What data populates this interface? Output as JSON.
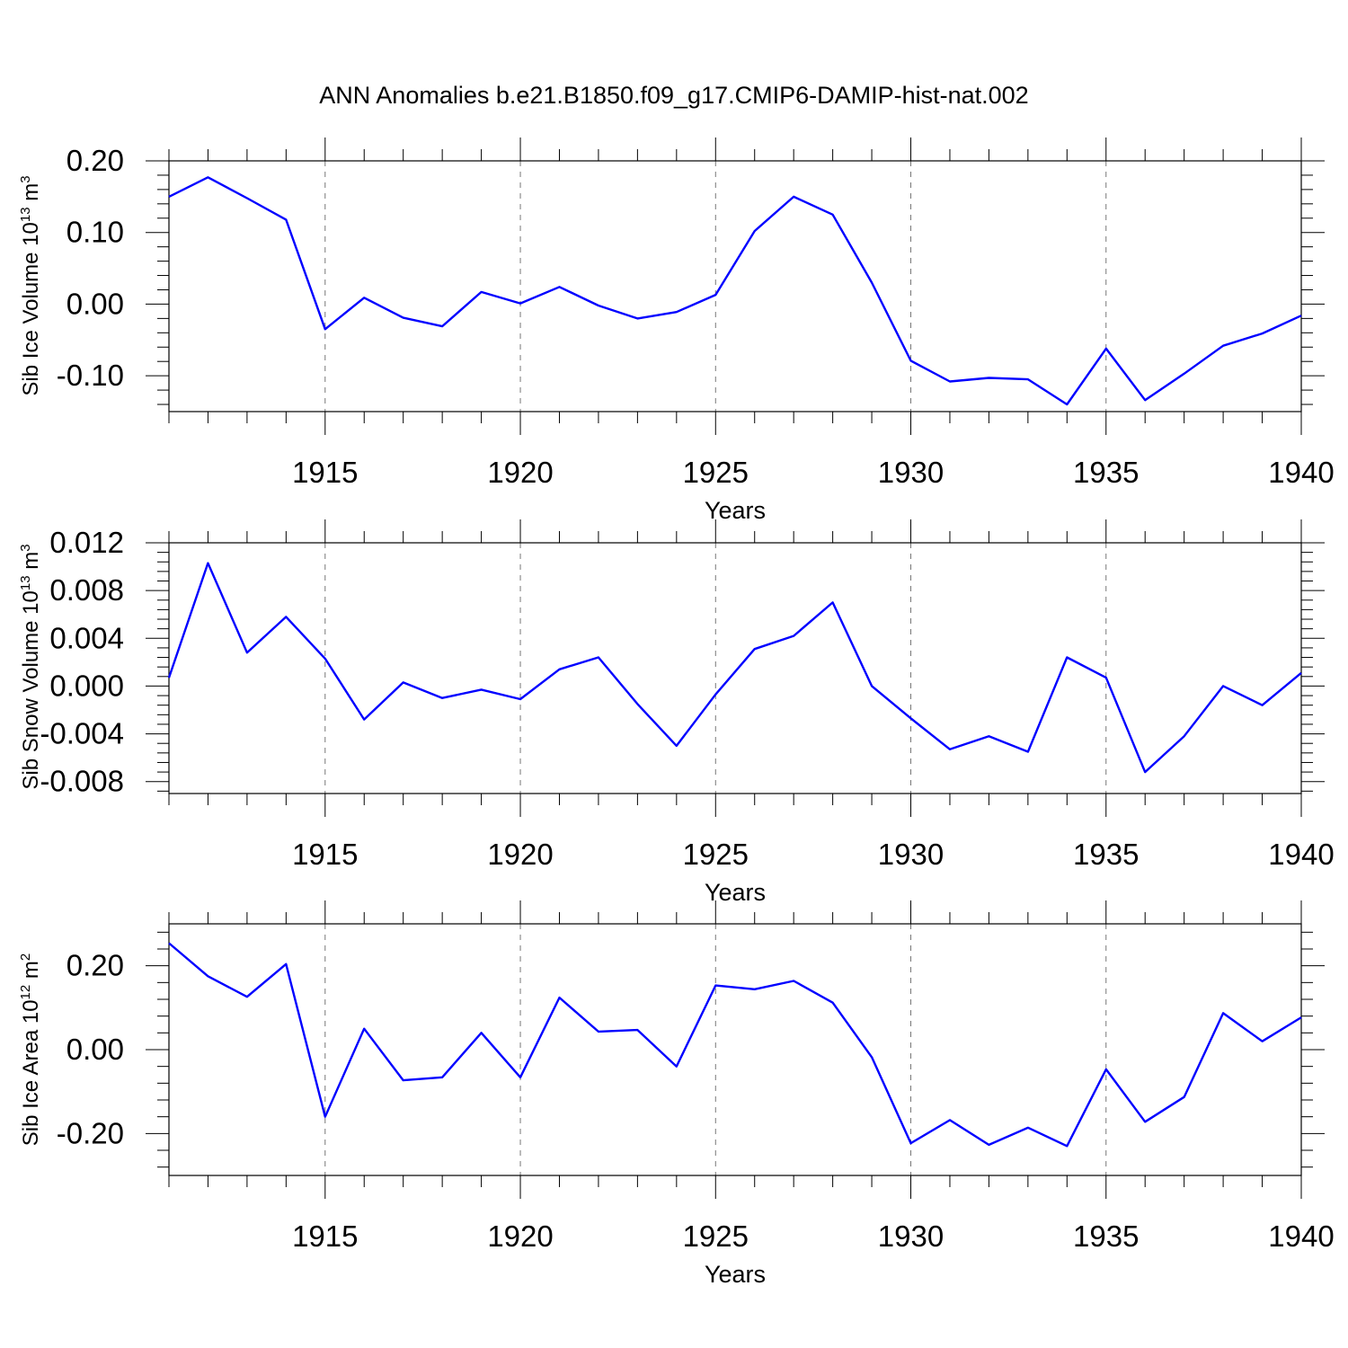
{
  "title": "ANN Anomalies b.e21.B1850.f09_g17.CMIP6-DAMIP-hist-nat.002",
  "chart_data": [
    {
      "type": "line",
      "title": "ANN Anomalies b.e21.B1850.f09_g17.CMIP6-DAMIP-hist-nat.002",
      "xlabel": "Years",
      "ylabel": {
        "text": "Sib Ice Volume 10",
        "sup": "13",
        "unit": " m",
        "unit_sup": "3"
      },
      "xlim": [
        1911,
        1940
      ],
      "ylim": [
        -0.15,
        0.2
      ],
      "x_ticks": [
        1915,
        1920,
        1925,
        1930,
        1935,
        1940
      ],
      "y_ticks": [
        "0.20",
        "0.10",
        "0.00",
        "-0.10"
      ],
      "y_tick_values": [
        0.2,
        0.1,
        0.0,
        -0.1
      ],
      "grid": "vertical dashed at major x ticks",
      "color": "#0000ff",
      "x": [
        1911,
        1912,
        1913,
        1914,
        1915,
        1916,
        1917,
        1918,
        1919,
        1920,
        1921,
        1922,
        1923,
        1924,
        1925,
        1926,
        1927,
        1928,
        1929,
        1930,
        1931,
        1932,
        1933,
        1934,
        1935,
        1936,
        1937,
        1938,
        1939,
        1940
      ],
      "values": [
        0.15,
        0.177,
        0.148,
        0.118,
        -0.035,
        0.009,
        -0.019,
        -0.031,
        0.017,
        0.001,
        0.024,
        -0.002,
        -0.02,
        -0.011,
        0.013,
        0.102,
        0.15,
        0.125,
        0.03,
        -0.079,
        -0.108,
        -0.103,
        -0.105,
        -0.14,
        -0.062,
        -0.134,
        -0.097,
        -0.058,
        -0.041,
        -0.016
      ]
    },
    {
      "type": "line",
      "xlabel": "Years",
      "ylabel": {
        "text": "Sib Snow Volume 10",
        "sup": "13",
        "unit": " m",
        "unit_sup": "3"
      },
      "xlim": [
        1911,
        1940
      ],
      "ylim": [
        -0.009,
        0.012
      ],
      "x_ticks": [
        1915,
        1920,
        1925,
        1930,
        1935,
        1940
      ],
      "y_ticks": [
        "0.012",
        "0.008",
        "0.004",
        "0.000",
        "-0.004",
        "-0.008"
      ],
      "y_tick_values": [
        0.012,
        0.008,
        0.004,
        0.0,
        -0.004,
        -0.008
      ],
      "grid": "vertical dashed at major x ticks",
      "color": "#0000ff",
      "x": [
        1911,
        1912,
        1913,
        1914,
        1915,
        1916,
        1917,
        1918,
        1919,
        1920,
        1921,
        1922,
        1923,
        1924,
        1925,
        1926,
        1927,
        1928,
        1929,
        1930,
        1931,
        1932,
        1933,
        1934,
        1935,
        1936,
        1937,
        1938,
        1939,
        1940
      ],
      "values": [
        0.0007,
        0.0103,
        0.0028,
        0.0058,
        0.0023,
        -0.0028,
        0.0003,
        -0.001,
        -0.0003,
        -0.0011,
        0.0014,
        0.0024,
        -0.0015,
        -0.005,
        -0.0007,
        0.0031,
        0.0042,
        0.007,
        0.0,
        -0.0027,
        -0.0053,
        -0.0042,
        -0.0055,
        0.0024,
        0.0007,
        -0.0072,
        -0.0042,
        0.0,
        -0.0016,
        0.0011
      ]
    },
    {
      "type": "line",
      "xlabel": "Years",
      "ylabel": {
        "text": "Sib Ice Area 10",
        "sup": "12",
        "unit": " m",
        "unit_sup": "2"
      },
      "xlim": [
        1911,
        1940
      ],
      "ylim": [
        -0.3,
        0.3
      ],
      "x_ticks": [
        1915,
        1920,
        1925,
        1930,
        1935,
        1940
      ],
      "y_ticks": [
        "0.20",
        "0.00",
        "-0.20"
      ],
      "y_tick_values": [
        0.2,
        0.0,
        -0.2
      ],
      "grid": "vertical dashed at major x ticks",
      "color": "#0000ff",
      "x": [
        1911,
        1912,
        1913,
        1914,
        1915,
        1916,
        1917,
        1918,
        1919,
        1920,
        1921,
        1922,
        1923,
        1924,
        1925,
        1926,
        1927,
        1928,
        1929,
        1930,
        1931,
        1932,
        1933,
        1934,
        1935,
        1936,
        1937,
        1938,
        1939,
        1940
      ],
      "values": [
        0.254,
        0.175,
        0.126,
        0.204,
        -0.16,
        0.05,
        -0.073,
        -0.066,
        0.04,
        -0.066,
        0.124,
        0.043,
        0.047,
        -0.04,
        0.153,
        0.144,
        0.164,
        0.112,
        -0.018,
        -0.223,
        -0.168,
        -0.227,
        -0.186,
        -0.23,
        -0.047,
        -0.172,
        -0.113,
        0.087,
        0.02,
        0.077
      ]
    }
  ]
}
